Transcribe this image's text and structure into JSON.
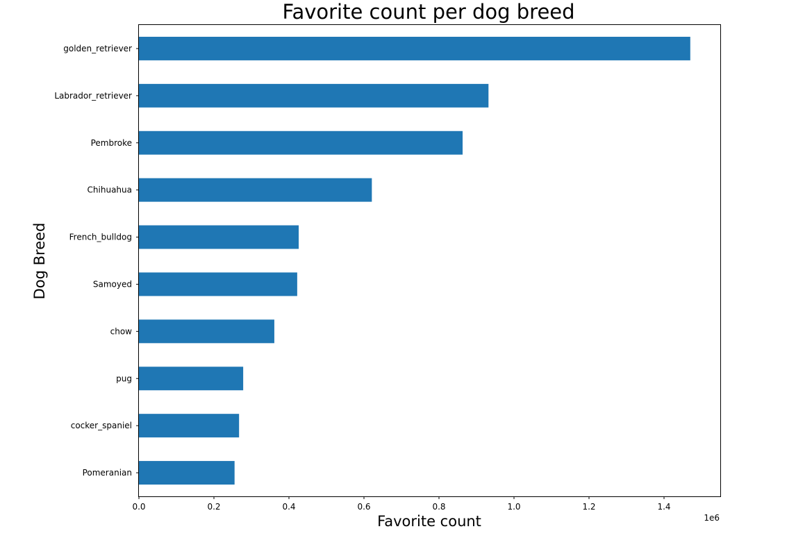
{
  "chart_data": {
    "type": "bar",
    "orientation": "horizontal",
    "title": "Favorite count per dog breed",
    "xlabel": "Favorite count",
    "ylabel": "Dog Breed",
    "x_offset_label": "1e6",
    "categories": [
      "golden_retriever",
      "Labrador_retriever",
      "Pembroke",
      "Chihuahua",
      "French_bulldog",
      "Samoyed",
      "chow",
      "pug",
      "cocker_spaniel",
      "Pomeranian"
    ],
    "values": [
      1470000,
      932000,
      863000,
      621000,
      426000,
      422000,
      361000,
      278000,
      267000,
      255000
    ],
    "xlim": [
      0,
      1550000
    ],
    "xticks": [
      0,
      200000,
      400000,
      600000,
      800000,
      1000000,
      1200000,
      1400000
    ],
    "xtick_labels": [
      "0.0",
      "0.2",
      "0.4",
      "0.6",
      "0.8",
      "1.0",
      "1.2",
      "1.4"
    ],
    "bar_color": "#1f77b4",
    "grid": false,
    "legend": "none"
  }
}
